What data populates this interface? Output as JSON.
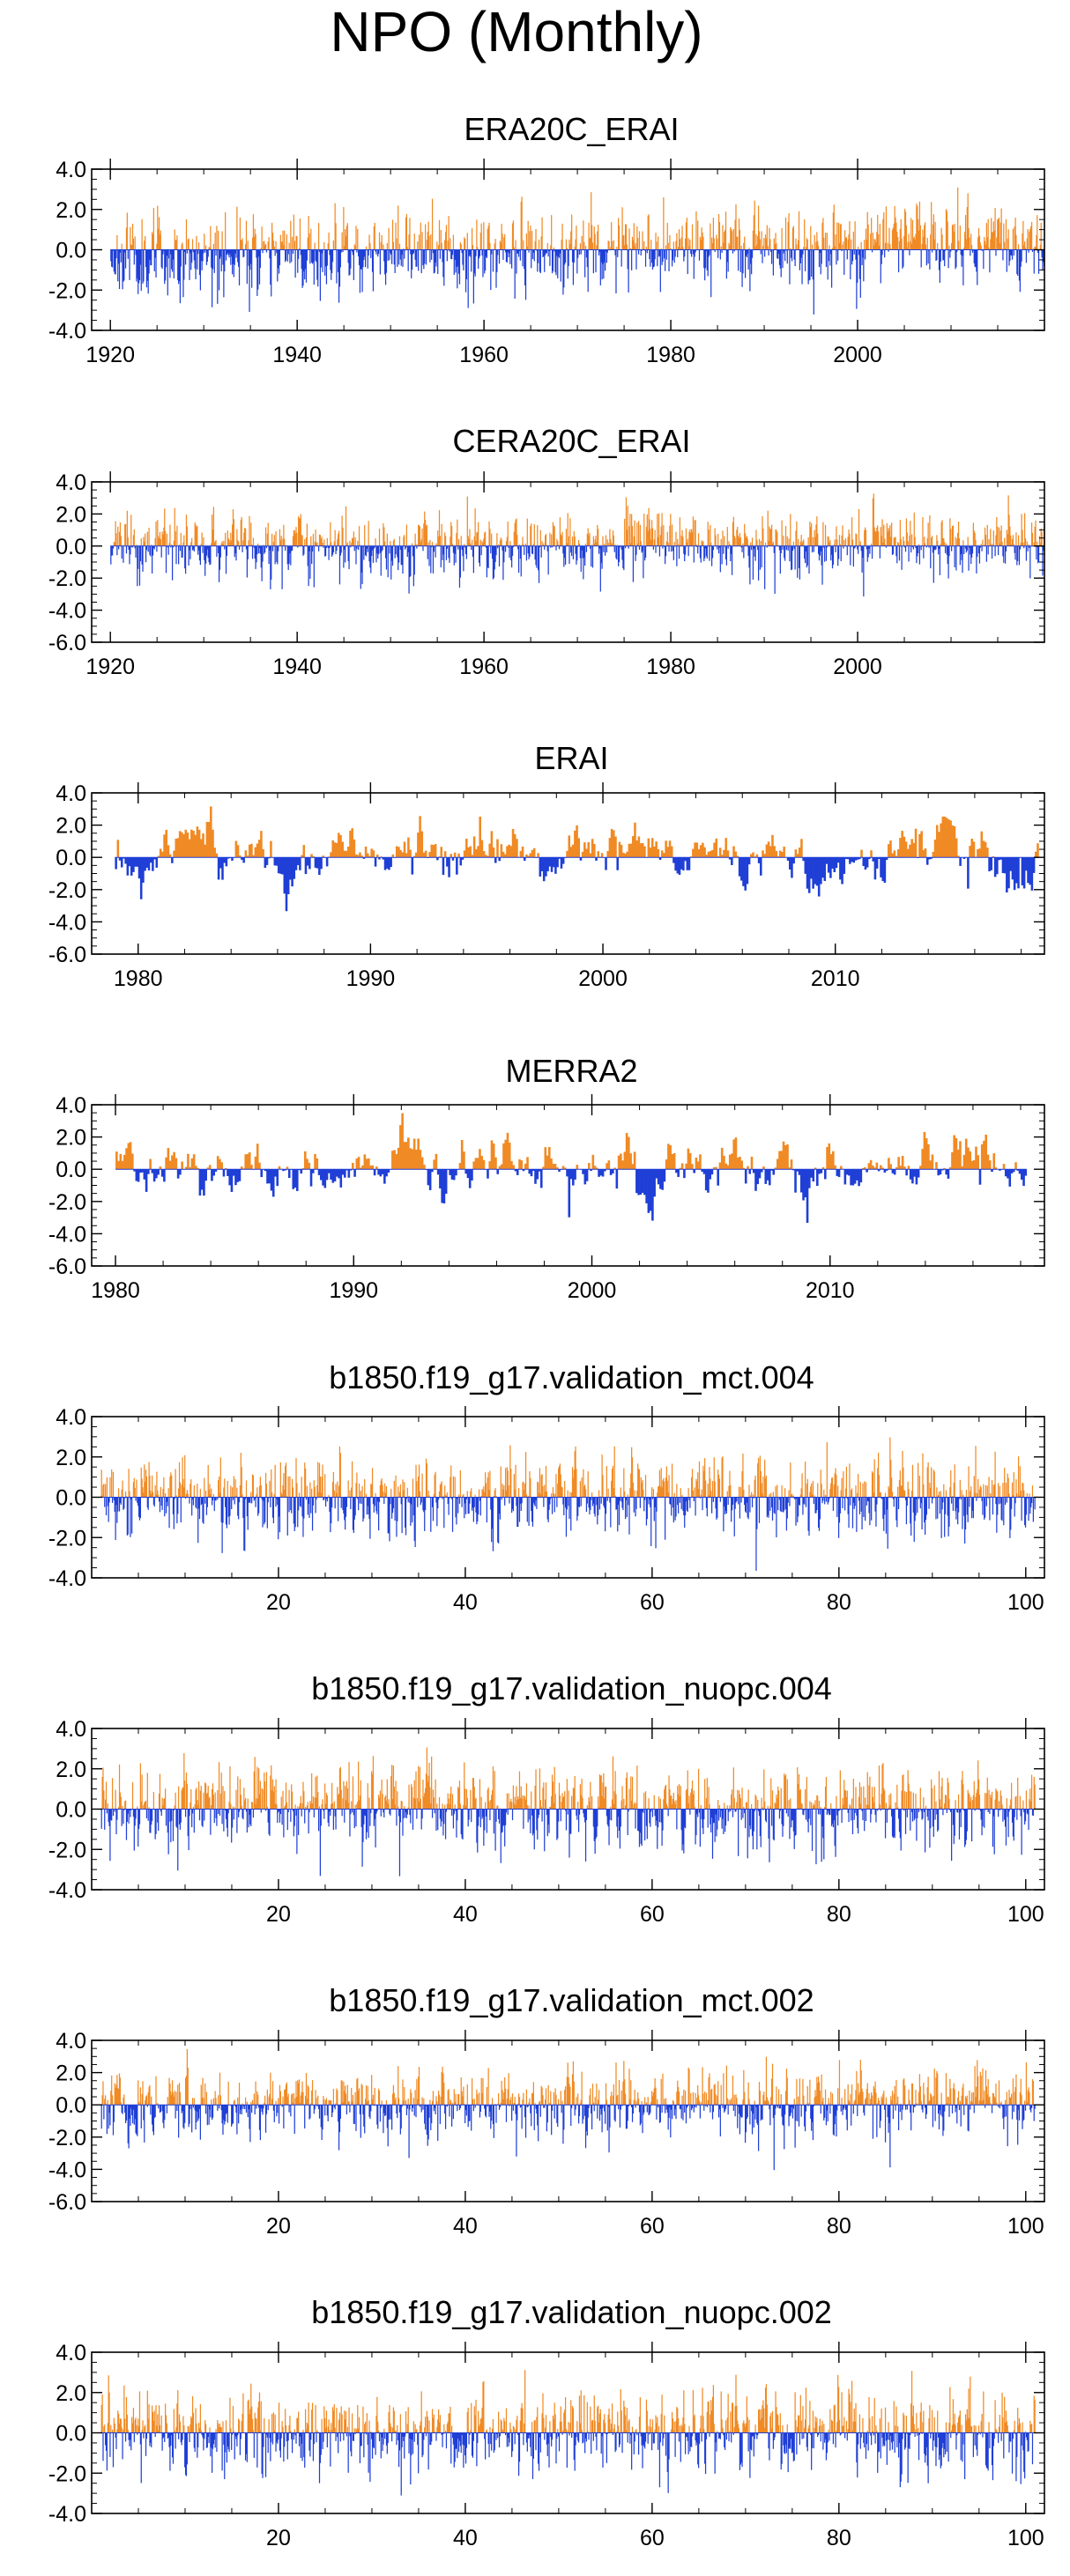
{
  "figure": {
    "title": "NPO (Monthly)",
    "positive_color": "#f08a24",
    "negative_color": "#1f3fd6",
    "axis_color": "#000000"
  },
  "chart_data": [
    {
      "type": "bar",
      "title": "ERA20C_ERAI",
      "x_range": [
        1918,
        2020
      ],
      "ylim": [
        -4.0,
        4.0
      ],
      "yticks": [
        "4.0",
        "2.0",
        "0.0",
        "-2.0",
        "-4.0"
      ],
      "xticks": [
        1920,
        1940,
        1960,
        1980,
        2000
      ],
      "xtick_labels": [
        "1920",
        "1940",
        "1960",
        "1980",
        "2000"
      ],
      "x_start": 1920.0,
      "x_end": 2020.0,
      "months": 1200,
      "amp": 1.0,
      "trend": 0.6,
      "sharp": 0.55,
      "seed": 11
    },
    {
      "type": "bar",
      "title": "CERA20C_ERAI",
      "x_range": [
        1918,
        2020
      ],
      "ylim": [
        -6.0,
        4.0
      ],
      "yticks": [
        "4.0",
        "2.0",
        "0.0",
        "-2.0",
        "-4.0",
        "-6.0"
      ],
      "xticks": [
        1920,
        1940,
        1960,
        1980,
        2000
      ],
      "xtick_labels": [
        "1920",
        "1940",
        "1960",
        "1980",
        "2000"
      ],
      "x_start": 1920.0,
      "x_end": 2020.0,
      "months": 1200,
      "amp": 1.0,
      "trend": 0.15,
      "sharp": 0.55,
      "seed": 23
    },
    {
      "type": "bar",
      "title": "ERAI",
      "x_range": [
        1978,
        2019
      ],
      "ylim": [
        -6.0,
        4.0
      ],
      "yticks": [
        "4.0",
        "2.0",
        "0.0",
        "-2.0",
        "-4.0",
        "-6.0"
      ],
      "xticks": [
        1980,
        1990,
        2000,
        2010
      ],
      "xtick_labels": [
        "1980",
        "1990",
        "2000",
        "2010"
      ],
      "x_start": 1979.0,
      "x_end": 2018.75,
      "months": 477,
      "amp": 1.0,
      "trend": 0.0,
      "sharp": 0.92,
      "seed": 37
    },
    {
      "type": "bar",
      "title": "MERRA2",
      "x_range": [
        1979,
        2019
      ],
      "ylim": [
        -6.0,
        4.0
      ],
      "yticks": [
        "4.0",
        "2.0",
        "0.0",
        "-2.0",
        "-4.0",
        "-6.0"
      ],
      "xticks": [
        1980,
        1990,
        2000,
        2010
      ],
      "xtick_labels": [
        "1980",
        "1990",
        "2000",
        "2010"
      ],
      "x_start": 1980.0,
      "x_end": 2018.25,
      "months": 459,
      "amp": 1.0,
      "trend": 0.0,
      "sharp": 0.92,
      "seed": 41
    },
    {
      "type": "bar",
      "title": "b1850.f19_g17.validation_mct.004",
      "x_range": [
        0,
        102
      ],
      "ylim": [
        -4.0,
        4.0
      ],
      "yticks": [
        "4.0",
        "2.0",
        "0.0",
        "-2.0",
        "-4.0"
      ],
      "xticks": [
        20,
        40,
        60,
        80,
        100
      ],
      "xtick_labels": [
        "20",
        "40",
        "60",
        "80",
        "100"
      ],
      "x_start": 1.0,
      "x_end": 101.0,
      "months": 1200,
      "amp": 1.0,
      "trend": 0.0,
      "sharp": 0.55,
      "seed": 53
    },
    {
      "type": "bar",
      "title": "b1850.f19_g17.validation_nuopc.004",
      "x_range": [
        0,
        102
      ],
      "ylim": [
        -4.0,
        4.0
      ],
      "yticks": [
        "4.0",
        "2.0",
        "0.0",
        "-2.0",
        "-4.0"
      ],
      "xticks": [
        20,
        40,
        60,
        80,
        100
      ],
      "xtick_labels": [
        "20",
        "40",
        "60",
        "80",
        "100"
      ],
      "x_start": 1.0,
      "x_end": 101.0,
      "months": 1200,
      "amp": 1.0,
      "trend": 0.0,
      "sharp": 0.55,
      "seed": 67
    },
    {
      "type": "bar",
      "title": "b1850.f19_g17.validation_mct.002",
      "x_range": [
        0,
        102
      ],
      "ylim": [
        -6.0,
        4.0
      ],
      "yticks": [
        "4.0",
        "2.0",
        "0.0",
        "-2.0",
        "-4.0",
        "-6.0"
      ],
      "xticks": [
        20,
        40,
        60,
        80,
        100
      ],
      "xtick_labels": [
        "20",
        "40",
        "60",
        "80",
        "100"
      ],
      "x_start": 1.0,
      "x_end": 101.0,
      "months": 1200,
      "amp": 1.0,
      "trend": 0.0,
      "sharp": 0.55,
      "seed": 79
    },
    {
      "type": "bar",
      "title": "b1850.f19_g17.validation_nuopc.002",
      "x_range": [
        0,
        102
      ],
      "ylim": [
        -4.0,
        4.0
      ],
      "yticks": [
        "4.0",
        "2.0",
        "0.0",
        "-2.0",
        "-4.0"
      ],
      "xticks": [
        20,
        40,
        60,
        80,
        100
      ],
      "xtick_labels": [
        "20",
        "40",
        "60",
        "80",
        "100"
      ],
      "x_start": 1.0,
      "x_end": 101.0,
      "months": 1200,
      "amp": 1.0,
      "trend": 0.0,
      "sharp": 0.55,
      "seed": 97
    }
  ]
}
